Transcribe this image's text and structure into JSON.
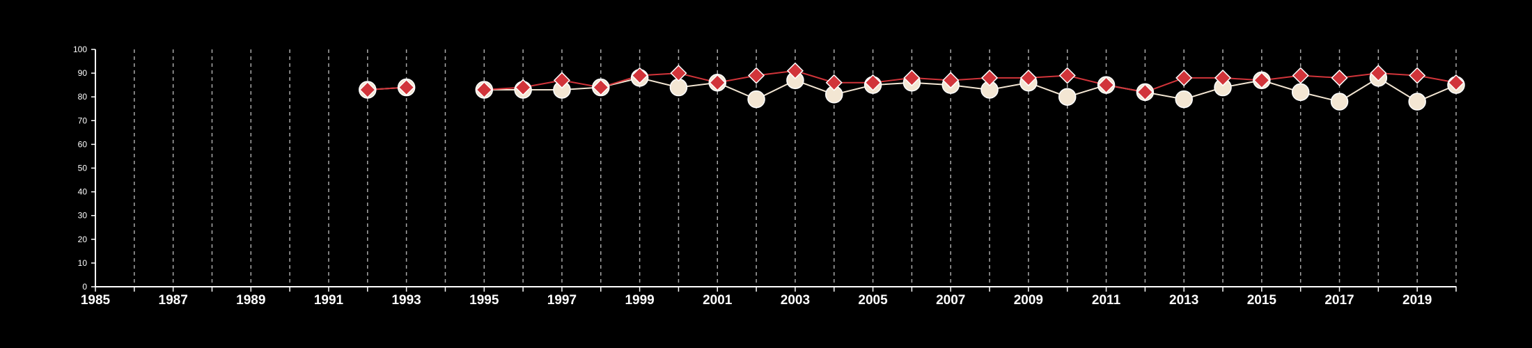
{
  "chart_data": {
    "type": "line",
    "title": "",
    "xlabel": "",
    "ylabel": "",
    "xlim": [
      1985,
      2020
    ],
    "ylim": [
      0,
      100
    ],
    "x_ticks": [
      1985,
      1987,
      1989,
      1991,
      1993,
      1995,
      1997,
      1999,
      2001,
      2003,
      2005,
      2007,
      2009,
      2011,
      2013,
      2015,
      2017,
      2019
    ],
    "x_tick_labels": [
      "1985",
      "1987",
      "1989",
      "1991",
      "1993",
      "1995",
      "1997",
      "1999",
      "2001",
      "2003",
      "2005",
      "2007",
      "2009",
      "2011",
      "2013",
      "2015",
      "2017",
      "2019"
    ],
    "y_ticks": [
      0,
      10,
      20,
      30,
      40,
      50,
      60,
      70,
      80,
      90,
      100
    ],
    "y_tick_labels": [
      "0",
      "10",
      "20",
      "30",
      "40",
      "50",
      "60",
      "70",
      "80",
      "90",
      "100"
    ],
    "grid": "vertical dashed lines at each year",
    "legend": "none",
    "series": [
      {
        "marker": "circle",
        "color": "#f3e6d3",
        "points": [
          [
            1992,
            83
          ],
          [
            1993,
            84
          ],
          [
            1995,
            83
          ],
          [
            1996,
            83
          ],
          [
            1997,
            83
          ],
          [
            1998,
            84
          ],
          [
            1999,
            88
          ],
          [
            2000,
            84
          ],
          [
            2001,
            86
          ],
          [
            2002,
            79
          ],
          [
            2003,
            87
          ],
          [
            2004,
            81
          ],
          [
            2005,
            85
          ],
          [
            2006,
            86
          ],
          [
            2007,
            85
          ],
          [
            2008,
            83
          ],
          [
            2009,
            86
          ],
          [
            2010,
            80
          ],
          [
            2011,
            85
          ],
          [
            2012,
            82
          ],
          [
            2013,
            79
          ],
          [
            2014,
            84
          ],
          [
            2015,
            87
          ],
          [
            2016,
            82
          ],
          [
            2017,
            78
          ],
          [
            2018,
            88
          ],
          [
            2019,
            78
          ],
          [
            2020,
            85
          ]
        ]
      },
      {
        "marker": "diamond",
        "color": "#d1343a",
        "points": [
          [
            1992,
            83
          ],
          [
            1993,
            84
          ],
          [
            1995,
            83
          ],
          [
            1996,
            84
          ],
          [
            1997,
            87
          ],
          [
            1998,
            84
          ],
          [
            1999,
            89
          ],
          [
            2000,
            90
          ],
          [
            2001,
            86
          ],
          [
            2002,
            89
          ],
          [
            2003,
            91
          ],
          [
            2004,
            86
          ],
          [
            2005,
            86
          ],
          [
            2006,
            88
          ],
          [
            2007,
            87
          ],
          [
            2008,
            88
          ],
          [
            2009,
            88
          ],
          [
            2010,
            89
          ],
          [
            2011,
            85
          ],
          [
            2012,
            82
          ],
          [
            2013,
            88
          ],
          [
            2014,
            88
          ],
          [
            2015,
            87
          ],
          [
            2016,
            89
          ],
          [
            2017,
            88
          ],
          [
            2018,
            90
          ],
          [
            2019,
            89
          ],
          [
            2020,
            86
          ]
        ]
      }
    ]
  },
  "colors": {
    "background": "#000000",
    "axis": "#ffffff",
    "grid": "#aaaaaa"
  }
}
